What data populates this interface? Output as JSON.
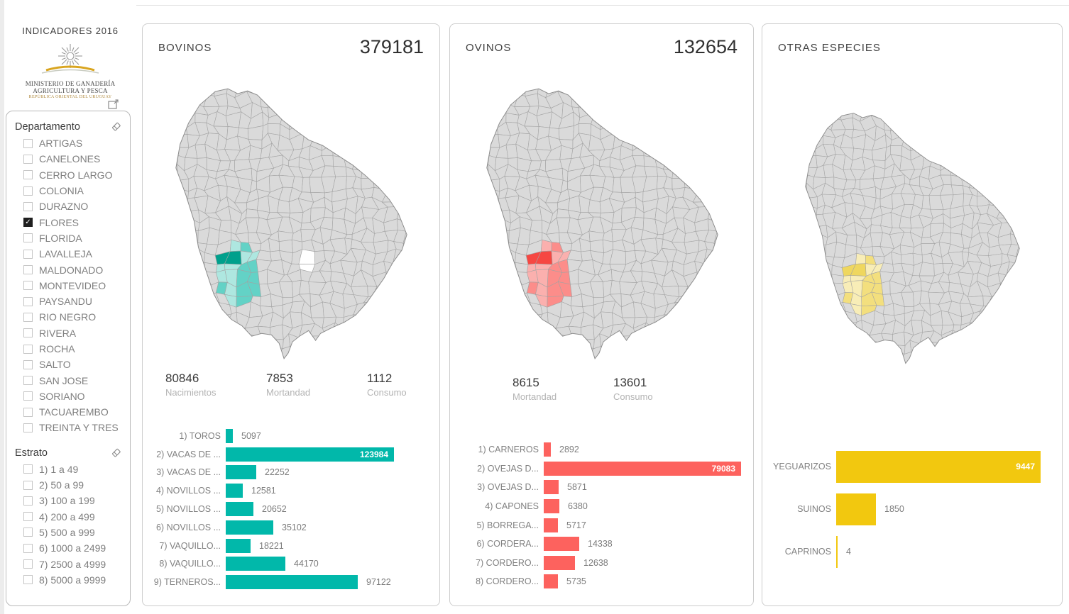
{
  "page": {
    "title": "INDICADORES 2016"
  },
  "logo": {
    "line1": "MINISTERIO DE GANADERÍA",
    "line2": "AGRICULTURA Y PESCA",
    "line3": "REPÚBLICA ORIENTAL DEL URUGUAY"
  },
  "icons": {
    "eraser": "eraser-icon",
    "popout": "popout-icon",
    "checkmark": "✓"
  },
  "filters": {
    "departamento": {
      "label": "Departamento",
      "items": [
        {
          "label": "ARTIGAS",
          "checked": false
        },
        {
          "label": "CANELONES",
          "checked": false
        },
        {
          "label": "CERRO LARGO",
          "checked": false
        },
        {
          "label": "COLONIA",
          "checked": false
        },
        {
          "label": "DURAZNO",
          "checked": false
        },
        {
          "label": "FLORES",
          "checked": true
        },
        {
          "label": "FLORIDA",
          "checked": false
        },
        {
          "label": "LAVALLEJA",
          "checked": false
        },
        {
          "label": "MALDONADO",
          "checked": false
        },
        {
          "label": "MONTEVIDEO",
          "checked": false
        },
        {
          "label": "PAYSANDU",
          "checked": false
        },
        {
          "label": "RIO NEGRO",
          "checked": false
        },
        {
          "label": "RIVERA",
          "checked": false
        },
        {
          "label": "ROCHA",
          "checked": false
        },
        {
          "label": "SALTO",
          "checked": false
        },
        {
          "label": "SAN JOSE",
          "checked": false
        },
        {
          "label": "SORIANO",
          "checked": false
        },
        {
          "label": "TACUAREMBO",
          "checked": false
        },
        {
          "label": "TREINTA Y TRES",
          "checked": false
        }
      ]
    },
    "estrato": {
      "label": "Estrato",
      "items": [
        {
          "label": "1) 1 a 49",
          "checked": false
        },
        {
          "label": "2) 50 a 99",
          "checked": false
        },
        {
          "label": "3) 100 a 199",
          "checked": false
        },
        {
          "label": "4) 200 a 499",
          "checked": false
        },
        {
          "label": "5) 500 a 999",
          "checked": false
        },
        {
          "label": "6) 1000 a 2499",
          "checked": false
        },
        {
          "label": "7) 2500 a 4999",
          "checked": false
        },
        {
          "label": "8) 5000 a 9999",
          "checked": false
        }
      ]
    }
  },
  "cards": [
    {
      "id": "bovinos",
      "title": "BOVINOS",
      "total": "379181",
      "stats": [
        {
          "value": "80846",
          "label": "Nacimientos"
        },
        {
          "value": "7853",
          "label": "Mortandad"
        },
        {
          "value": "1112",
          "label": "Consumo"
        }
      ],
      "accent": "#01b8aa"
    },
    {
      "id": "ovinos",
      "title": "OVINOS",
      "total": "132654",
      "stats": [
        {
          "value": "8615",
          "label": "Mortandad"
        },
        {
          "value": "13601",
          "label": "Consumo"
        }
      ],
      "accent": "#fd625e"
    },
    {
      "id": "otras-especies",
      "title": "OTRAS ESPECIES",
      "total": "",
      "stats": [],
      "accent": "#f2c80f"
    }
  ],
  "chart_data": [
    {
      "type": "bar",
      "title": "BOVINOS",
      "orientation": "horizontal",
      "categories": [
        "1) TOROS",
        "2) VACAS DE ...",
        "3) VACAS DE ...",
        "4) NOVILLOS ...",
        "5) NOVILLOS ...",
        "6) NOVILLOS ...",
        "7) VAQUILLO...",
        "8) VAQUILLO...",
        "9) TERNEROS..."
      ],
      "values": [
        5097,
        123984,
        22252,
        12581,
        20652,
        35102,
        18221,
        44170,
        97122
      ],
      "color": "#01b8aa",
      "xlim": [
        0,
        130000
      ]
    },
    {
      "type": "bar",
      "title": "OVINOS",
      "orientation": "horizontal",
      "categories": [
        "1) CARNEROS",
        "2) OVEJAS D...",
        "3) OVEJAS D...",
        "4) CAPONES",
        "5) BORREGA...",
        "6) CORDERA...",
        "7) CORDERO...",
        "8) CORDERO..."
      ],
      "values": [
        2892,
        79083,
        5871,
        6380,
        5717,
        14338,
        12638,
        5735
      ],
      "color": "#fd625e",
      "xlim": [
        0,
        83000
      ]
    },
    {
      "type": "bar",
      "title": "OTRAS ESPECIES",
      "orientation": "horizontal",
      "categories": [
        "YEGUARIZOS",
        "SUINOS",
        "CAPRINOS"
      ],
      "values": [
        9447,
        1850,
        4
      ],
      "color": "#f2c80f",
      "xlim": [
        0,
        9800
      ]
    }
  ]
}
